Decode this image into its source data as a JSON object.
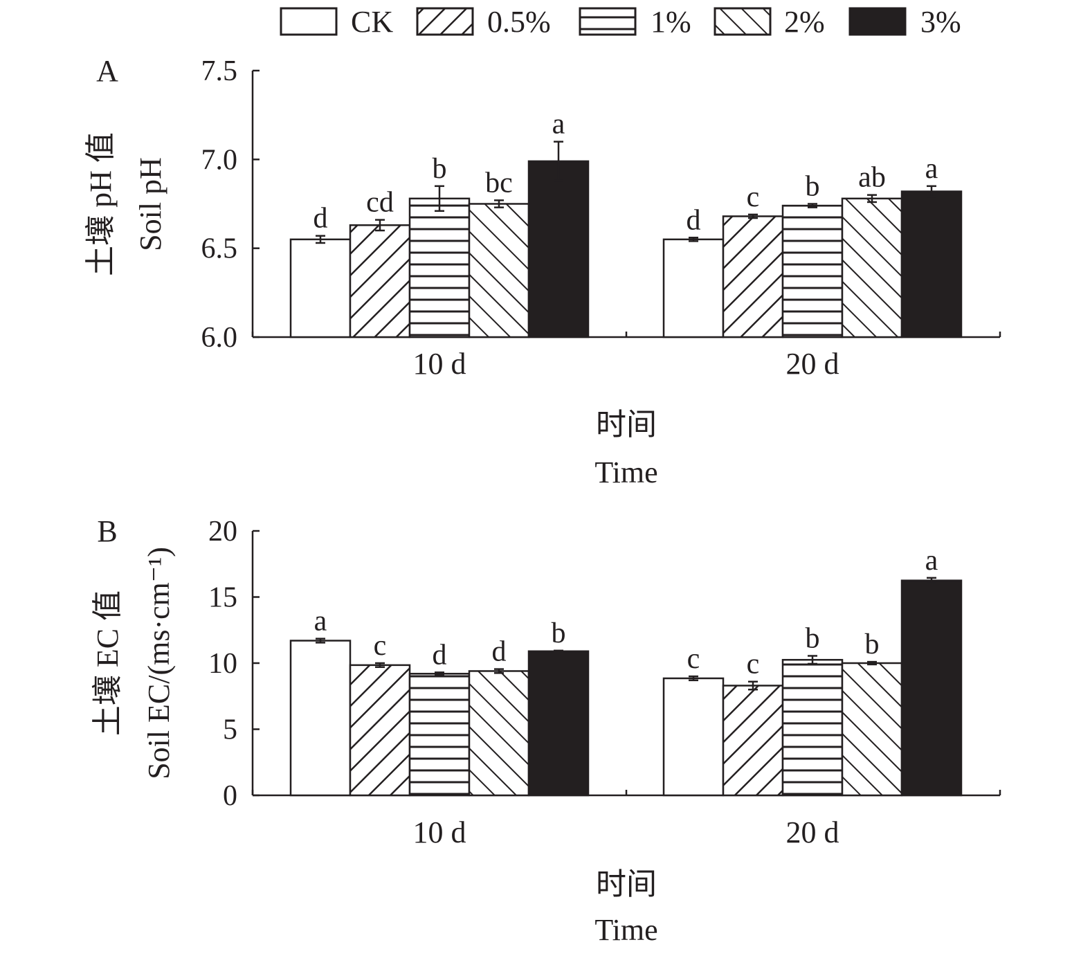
{
  "legend": [
    "CK",
    "0.5%",
    "1%",
    "2%",
    "3%"
  ],
  "chart_data": [
    {
      "type": "bar",
      "panel_label": "A",
      "ylabel_cn": "土壤 pH 值",
      "ylabel": "Soil pH",
      "xlabel_cn": "时间",
      "xlabel": "Time",
      "categories": [
        "10 d",
        "20 d"
      ],
      "ylim": [
        6.0,
        7.5
      ],
      "yticks": [
        "6.0",
        "6.5",
        "7.0",
        "7.5"
      ],
      "ytick_values": [
        6.0,
        6.5,
        7.0,
        7.5
      ],
      "series": [
        {
          "name": "CK",
          "values": [
            6.55,
            6.55
          ],
          "errors": [
            0.02,
            0.01
          ],
          "letters": [
            "d",
            "d"
          ]
        },
        {
          "name": "0.5%",
          "values": [
            6.63,
            6.68
          ],
          "errors": [
            0.03,
            0.01
          ],
          "letters": [
            "cd",
            "c"
          ]
        },
        {
          "name": "1%",
          "values": [
            6.78,
            6.74
          ],
          "errors": [
            0.07,
            0.01
          ],
          "letters": [
            "b",
            "b"
          ]
        },
        {
          "name": "2%",
          "values": [
            6.75,
            6.78
          ],
          "errors": [
            0.02,
            0.02
          ],
          "letters": [
            "bc",
            "ab"
          ]
        },
        {
          "name": "3%",
          "values": [
            6.99,
            6.82
          ],
          "errors": [
            0.11,
            0.03
          ],
          "letters": [
            "a",
            "a"
          ]
        }
      ]
    },
    {
      "type": "bar",
      "panel_label": "B",
      "ylabel_cn": "土壤 EC 值",
      "ylabel": "Soil EC/(ms·cm⁻¹)",
      "xlabel_cn": "时间",
      "xlabel": "Time",
      "categories": [
        "10 d",
        "20 d"
      ],
      "ylim": [
        0,
        20
      ],
      "yticks": [
        "0",
        "5",
        "10",
        "15",
        "20"
      ],
      "ytick_values": [
        0,
        5,
        10,
        15,
        20
      ],
      "series": [
        {
          "name": "CK",
          "values": [
            11.7,
            8.85
          ],
          "errors": [
            0.15,
            0.15
          ],
          "letters": [
            "a",
            "c"
          ]
        },
        {
          "name": "0.5%",
          "values": [
            9.85,
            8.3
          ],
          "errors": [
            0.15,
            0.3
          ],
          "letters": [
            "c",
            "c"
          ]
        },
        {
          "name": "1%",
          "values": [
            9.2,
            10.25
          ],
          "errors": [
            0.1,
            0.3
          ],
          "letters": [
            "d",
            "b"
          ]
        },
        {
          "name": "2%",
          "values": [
            9.4,
            10.0
          ],
          "errors": [
            0.15,
            0.1
          ],
          "letters": [
            "d",
            "b"
          ]
        },
        {
          "name": "3%",
          "values": [
            10.9,
            16.25
          ],
          "errors": [
            0.05,
            0.2
          ],
          "letters": [
            "b",
            "a"
          ]
        }
      ]
    }
  ]
}
